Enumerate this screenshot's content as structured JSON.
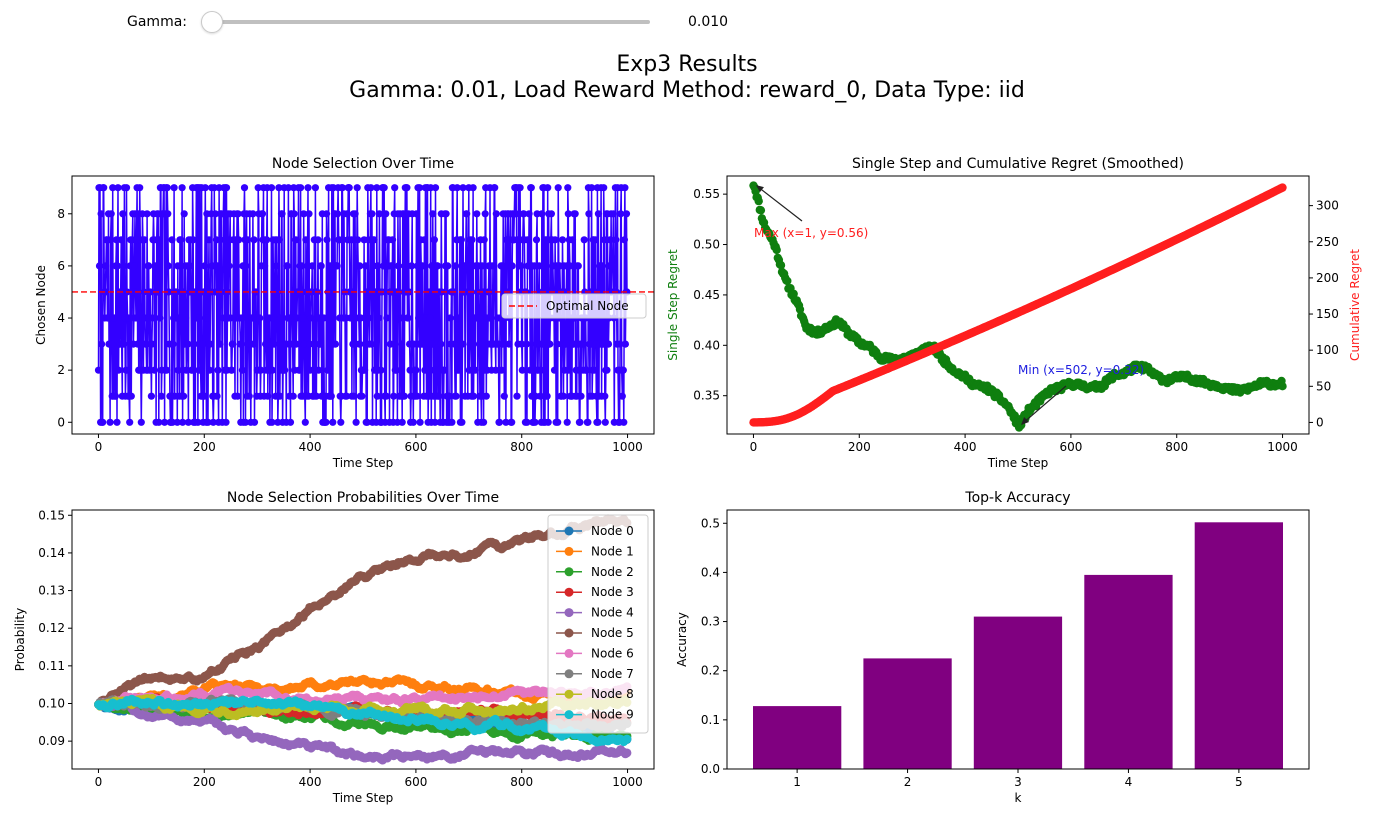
{
  "slider": {
    "label": "Gamma:",
    "value": 0.01,
    "value_text": "0.010",
    "min": 0,
    "max": 1
  },
  "figure": {
    "title_line1": "Exp3 Results",
    "title_line2": "Gamma: 0.01, Load Reward Method: reward_0, Data Type: iid"
  },
  "colors": {
    "blue": "#3300ff",
    "green": "#0f7f0f",
    "red": "#ff1f1f",
    "purple": "#800080"
  },
  "chart_data": [
    {
      "id": "node_selection",
      "type": "line",
      "title": "Node Selection Over Time",
      "xlabel": "Time Step",
      "ylabel": "Chosen Node",
      "xlim": [
        -50,
        1050
      ],
      "ylim": [
        -0.45,
        9.45
      ],
      "xticks": [
        "0",
        "200",
        "400",
        "600",
        "800",
        "1000"
      ],
      "yticks": [
        "0",
        "2",
        "4",
        "6",
        "8"
      ],
      "steps": 1000,
      "n_nodes": 10,
      "optimal_node": 5,
      "legend": {
        "entries": [
          "Optimal Node"
        ],
        "placement": "center-right"
      }
    },
    {
      "id": "regret",
      "type": "scatter",
      "title": "Single Step and Cumulative Regret (Smoothed)",
      "xlabel": "Time Step",
      "ylabel": "Single Step Regret",
      "ylabel_right": "Cumulative Regret",
      "xlim": [
        -50,
        1050
      ],
      "ylim": [
        0.312,
        0.568
      ],
      "ylim_right": [
        -16,
        341
      ],
      "xticks": [
        "0",
        "200",
        "400",
        "600",
        "800",
        "1000"
      ],
      "yticks": [
        "0.35",
        "0.40",
        "0.45",
        "0.50",
        "0.55"
      ],
      "yticks_right": [
        "0",
        "50",
        "100",
        "150",
        "200",
        "250",
        "300"
      ],
      "single_step_anchors": [
        [
          1,
          0.56
        ],
        [
          20,
          0.52
        ],
        [
          40,
          0.5
        ],
        [
          60,
          0.465
        ],
        [
          80,
          0.445
        ],
        [
          100,
          0.418
        ],
        [
          120,
          0.412
        ],
        [
          140,
          0.418
        ],
        [
          160,
          0.424
        ],
        [
          180,
          0.412
        ],
        [
          200,
          0.403
        ],
        [
          220,
          0.398
        ],
        [
          240,
          0.388
        ],
        [
          260,
          0.386
        ],
        [
          280,
          0.387
        ],
        [
          300,
          0.39
        ],
        [
          320,
          0.395
        ],
        [
          340,
          0.398
        ],
        [
          360,
          0.385
        ],
        [
          380,
          0.375
        ],
        [
          400,
          0.368
        ],
        [
          420,
          0.36
        ],
        [
          440,
          0.358
        ],
        [
          460,
          0.35
        ],
        [
          480,
          0.34
        ],
        [
          502,
          0.32
        ],
        [
          520,
          0.335
        ],
        [
          540,
          0.345
        ],
        [
          560,
          0.355
        ],
        [
          580,
          0.358
        ],
        [
          600,
          0.362
        ],
        [
          620,
          0.36
        ],
        [
          640,
          0.358
        ],
        [
          660,
          0.36
        ],
        [
          680,
          0.37
        ],
        [
          700,
          0.372
        ],
        [
          720,
          0.378
        ],
        [
          740,
          0.378
        ],
        [
          760,
          0.37
        ],
        [
          780,
          0.365
        ],
        [
          800,
          0.368
        ],
        [
          820,
          0.368
        ],
        [
          840,
          0.365
        ],
        [
          860,
          0.362
        ],
        [
          880,
          0.36
        ],
        [
          900,
          0.356
        ],
        [
          920,
          0.355
        ],
        [
          940,
          0.358
        ],
        [
          960,
          0.362
        ],
        [
          980,
          0.362
        ],
        [
          1000,
          0.362
        ]
      ],
      "cumulative_regret_final": 325,
      "annotations": [
        {
          "text": "Max (x=1, y=0.56)",
          "x": 1,
          "y": 0.56,
          "color": "#ff1f1f"
        },
        {
          "text": "Min (x=502, y=0.32)",
          "x": 502,
          "y": 0.32,
          "color": "#2020e0"
        }
      ]
    },
    {
      "id": "probabilities",
      "type": "line",
      "title": "Node Selection Probabilities Over Time",
      "xlabel": "Time Step",
      "ylabel": "Probability",
      "xlim": [
        -50,
        1050
      ],
      "ylim": [
        0.0826,
        0.1514
      ],
      "xticks": [
        "0",
        "200",
        "400",
        "600",
        "800",
        "1000"
      ],
      "yticks": [
        "0.09",
        "0.10",
        "0.11",
        "0.12",
        "0.13",
        "0.14",
        "0.15"
      ],
      "legend": {
        "placement": "upper-right"
      },
      "series": [
        {
          "name": "Node 0",
          "color": "#1f77b4",
          "anchors": [
            [
              0,
              0.1
            ],
            [
              200,
              0.099
            ],
            [
              400,
              0.098
            ],
            [
              600,
              0.096
            ],
            [
              800,
              0.094
            ],
            [
              1000,
              0.091
            ]
          ]
        },
        {
          "name": "Node 1",
          "color": "#ff7f0e",
          "anchors": [
            [
              0,
              0.1
            ],
            [
              100,
              0.102
            ],
            [
              200,
              0.104
            ],
            [
              350,
              0.104
            ],
            [
              500,
              0.106
            ],
            [
              600,
              0.105
            ],
            [
              700,
              0.104
            ],
            [
              850,
              0.102
            ],
            [
              1000,
              0.102
            ]
          ]
        },
        {
          "name": "Node 2",
          "color": "#2ca02c",
          "anchors": [
            [
              0,
              0.1
            ],
            [
              200,
              0.097
            ],
            [
              400,
              0.097
            ],
            [
              500,
              0.095
            ],
            [
              600,
              0.094
            ],
            [
              700,
              0.093
            ],
            [
              800,
              0.092
            ],
            [
              1000,
              0.092
            ]
          ]
        },
        {
          "name": "Node 3",
          "color": "#d62728",
          "anchors": [
            [
              0,
              0.1
            ],
            [
              200,
              0.099
            ],
            [
              400,
              0.098
            ],
            [
              600,
              0.097
            ],
            [
              800,
              0.098
            ],
            [
              1000,
              0.095
            ]
          ]
        },
        {
          "name": "Node 4",
          "color": "#9467bd",
          "anchors": [
            [
              0,
              0.1
            ],
            [
              100,
              0.097
            ],
            [
              200,
              0.095
            ],
            [
              300,
              0.091
            ],
            [
              400,
              0.088
            ],
            [
              500,
              0.086
            ],
            [
              600,
              0.086
            ],
            [
              800,
              0.087
            ],
            [
              1000,
              0.087
            ]
          ]
        },
        {
          "name": "Node 5",
          "color": "#8c564b",
          "anchors": [
            [
              0,
              0.1
            ],
            [
              50,
              0.103
            ],
            [
              100,
              0.107
            ],
            [
              200,
              0.107
            ],
            [
              300,
              0.115
            ],
            [
              400,
              0.125
            ],
            [
              500,
              0.134
            ],
            [
              600,
              0.139
            ],
            [
              700,
              0.14
            ],
            [
              800,
              0.143
            ],
            [
              850,
              0.145
            ],
            [
              950,
              0.148
            ],
            [
              1000,
              0.148
            ]
          ]
        },
        {
          "name": "Node 6",
          "color": "#e377c2",
          "anchors": [
            [
              0,
              0.1
            ],
            [
              200,
              0.103
            ],
            [
              300,
              0.103
            ],
            [
              400,
              0.102
            ],
            [
              600,
              0.101
            ],
            [
              800,
              0.102
            ],
            [
              1000,
              0.103
            ]
          ]
        },
        {
          "name": "Node 7",
          "color": "#7f7f7f",
          "anchors": [
            [
              0,
              0.1
            ],
            [
              200,
              0.1
            ],
            [
              400,
              0.099
            ],
            [
              600,
              0.096
            ],
            [
              800,
              0.095
            ],
            [
              1000,
              0.094
            ]
          ]
        },
        {
          "name": "Node 8",
          "color": "#bcbd22",
          "anchors": [
            [
              0,
              0.1
            ],
            [
              200,
              0.099
            ],
            [
              400,
              0.098
            ],
            [
              600,
              0.098
            ],
            [
              800,
              0.099
            ],
            [
              1000,
              0.1
            ]
          ]
        },
        {
          "name": "Node 9",
          "color": "#17becf",
          "anchors": [
            [
              0,
              0.1
            ],
            [
              200,
              0.1
            ],
            [
              300,
              0.101
            ],
            [
              400,
              0.099
            ],
            [
              500,
              0.097
            ],
            [
              600,
              0.096
            ],
            [
              800,
              0.093
            ],
            [
              1000,
              0.091
            ]
          ]
        }
      ]
    },
    {
      "id": "topk",
      "type": "bar",
      "title": "Top-k Accuracy",
      "xlabel": "k",
      "ylabel": "Accuracy",
      "categories": [
        "1",
        "2",
        "3",
        "4",
        "5"
      ],
      "values": [
        0.128,
        0.225,
        0.31,
        0.395,
        0.502
      ],
      "ylim": [
        0,
        0.527
      ],
      "yticks": [
        "0.0",
        "0.1",
        "0.2",
        "0.3",
        "0.4",
        "0.5"
      ]
    }
  ]
}
